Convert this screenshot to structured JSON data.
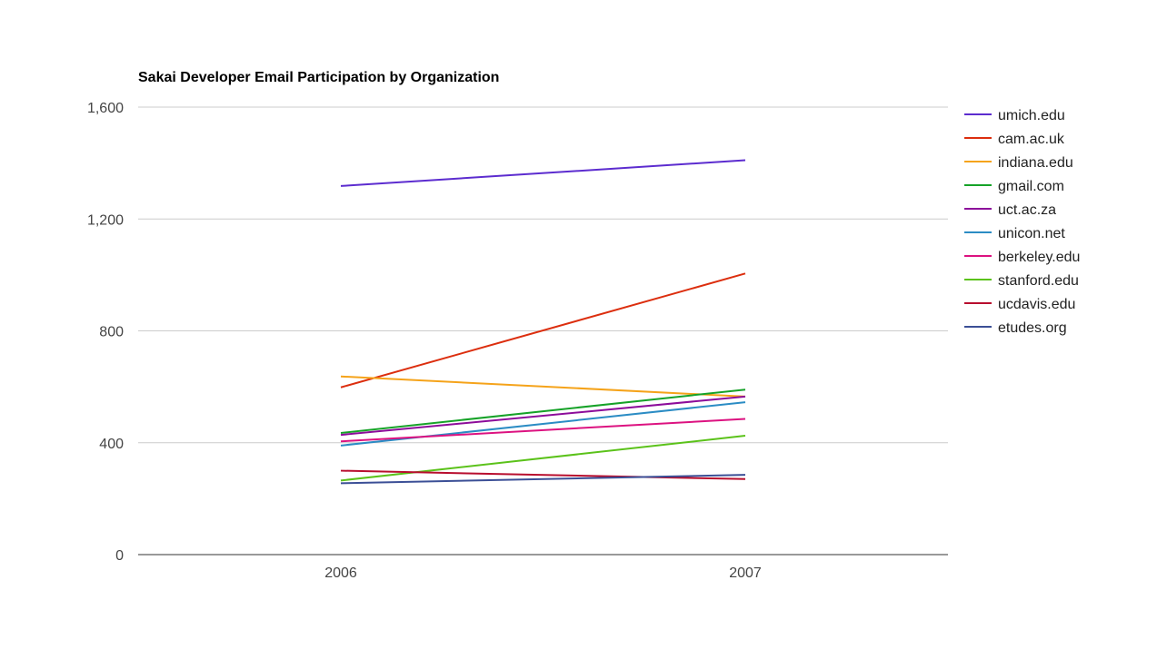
{
  "chart_data": {
    "type": "line",
    "title": "Sakai Developer Email Participation by Organization",
    "xlabel": "",
    "ylabel": "",
    "categories": [
      "2006",
      "2007"
    ],
    "ylim": [
      0,
      1600
    ],
    "yticks": [
      0,
      400,
      800,
      1200,
      1600
    ],
    "ytick_labels": [
      "0",
      "400",
      "800",
      "1,200",
      "1,600"
    ],
    "grid": true,
    "legend_position": "right",
    "series": [
      {
        "name": "umich.edu",
        "color": "#5c2ccf",
        "values": [
          1318,
          1410
        ]
      },
      {
        "name": "cam.ac.uk",
        "color": "#dc2e0e",
        "values": [
          598,
          1005
        ]
      },
      {
        "name": "indiana.edu",
        "color": "#f5a31a",
        "values": [
          637,
          565
        ]
      },
      {
        "name": "gmail.com",
        "color": "#16a228",
        "values": [
          435,
          590
        ]
      },
      {
        "name": "uct.ac.za",
        "color": "#8c0c9a",
        "values": [
          428,
          565
        ]
      },
      {
        "name": "unicon.net",
        "color": "#2b8cc4",
        "values": [
          390,
          545
        ]
      },
      {
        "name": "berkeley.edu",
        "color": "#dc1280",
        "values": [
          405,
          485
        ]
      },
      {
        "name": "stanford.edu",
        "color": "#5bc21a",
        "values": [
          265,
          425
        ]
      },
      {
        "name": "ucdavis.edu",
        "color": "#b80e2e",
        "values": [
          300,
          270
        ]
      },
      {
        "name": "etudes.org",
        "color": "#3b4f96",
        "values": [
          255,
          285
        ]
      }
    ]
  }
}
